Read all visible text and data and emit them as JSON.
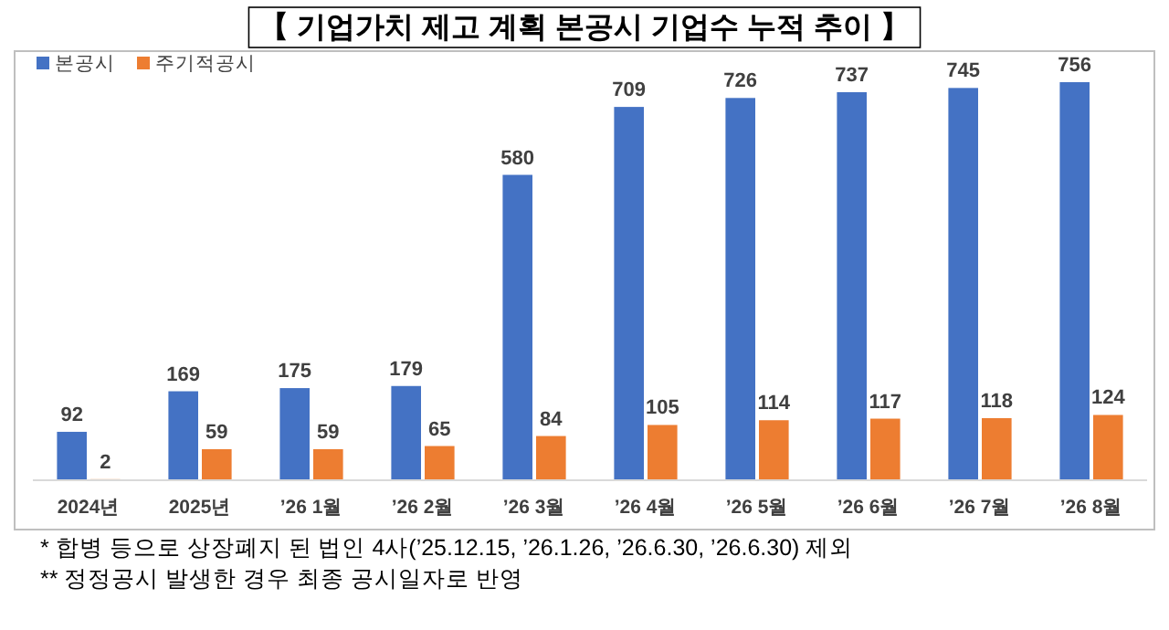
{
  "chart_data": {
    "type": "bar",
    "title": "【 기업가치 제고 계획 본공시 기업수 누적 추이 】",
    "categories": [
      "2024년",
      "2025년",
      "’26 1월",
      "’26 2월",
      "’26 3월",
      "’26 4월",
      "’26 5월",
      "’26 6월",
      "’26 7월",
      "’26 8월"
    ],
    "series": [
      {
        "name": "본공시",
        "color": "#4472c4",
        "values": [
          92,
          169,
          175,
          179,
          580,
          709,
          726,
          737,
          745,
          756
        ]
      },
      {
        "name": "주기적공시",
        "color": "#ed7d31",
        "values": [
          2,
          59,
          59,
          65,
          84,
          105,
          114,
          117,
          118,
          124
        ]
      }
    ],
    "data_labels": true,
    "legend": "top left",
    "annotations": [
      "* 합병 등으로 상장폐지 된 법인 4사(’25.12.15, ’26.1.26, ’26.6.30, ’26.6.30) 제외",
      "** 정정공시 발생한 경우 최종 공시일자로 반영"
    ]
  }
}
